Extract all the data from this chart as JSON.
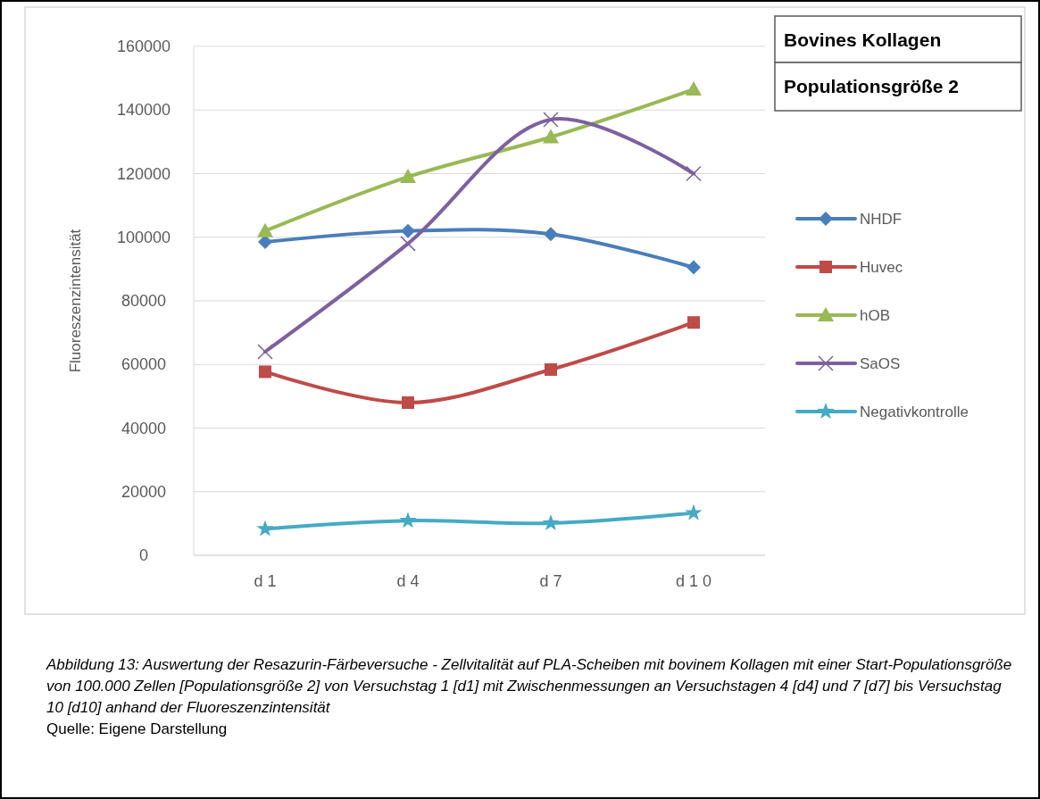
{
  "chart_data": {
    "type": "line",
    "title": "Bovines Kollagen",
    "subtitle": "Populationsgröße 2",
    "ylabel": "Fluoreszenzintensität",
    "categories": [
      "d 1",
      "d 4",
      "d 7",
      "d 1 0"
    ],
    "series": [
      {
        "name": "NHDF",
        "color": "#4a7ebb",
        "marker": "diamond",
        "values": [
          98500,
          102000,
          101000,
          90500
        ]
      },
      {
        "name": "Huvec",
        "color": "#be4b48",
        "marker": "square",
        "values": [
          57700,
          48000,
          58400,
          73200
        ]
      },
      {
        "name": "hOB",
        "color": "#98b954",
        "marker": "triangle",
        "values": [
          102000,
          119000,
          131500,
          146500
        ]
      },
      {
        "name": "SaOS",
        "color": "#7d60a0",
        "marker": "cross",
        "values": [
          64000,
          98000,
          137000,
          120000
        ]
      },
      {
        "name": "Negativkontrolle",
        "color": "#46aac5",
        "marker": "star",
        "values": [
          8300,
          10900,
          10100,
          13300
        ]
      }
    ],
    "ylim": [
      0,
      160000
    ],
    "yticks": [
      0,
      20000,
      40000,
      60000,
      80000,
      100000,
      120000,
      140000,
      160000
    ],
    "grid": "y",
    "legend": "right",
    "annotations": [
      "Abbildung 13: Auswertung der Resazurin-Färbeversuche - Zellvitalität auf PLA-Scheiben mit bovinem Kollagen mit einer Start-Populationsgröße von 100.000 Zellen [Populationsgröße 2] von Versuchstag 1 [d1] mit Zwischenmessungen an Versuchstagen 4 [d4] und 7 [d7] bis Versuchstag 10 [d10] anhand der Fluoreszenzintensität",
      "Quelle: Eigene Darstellung"
    ]
  }
}
